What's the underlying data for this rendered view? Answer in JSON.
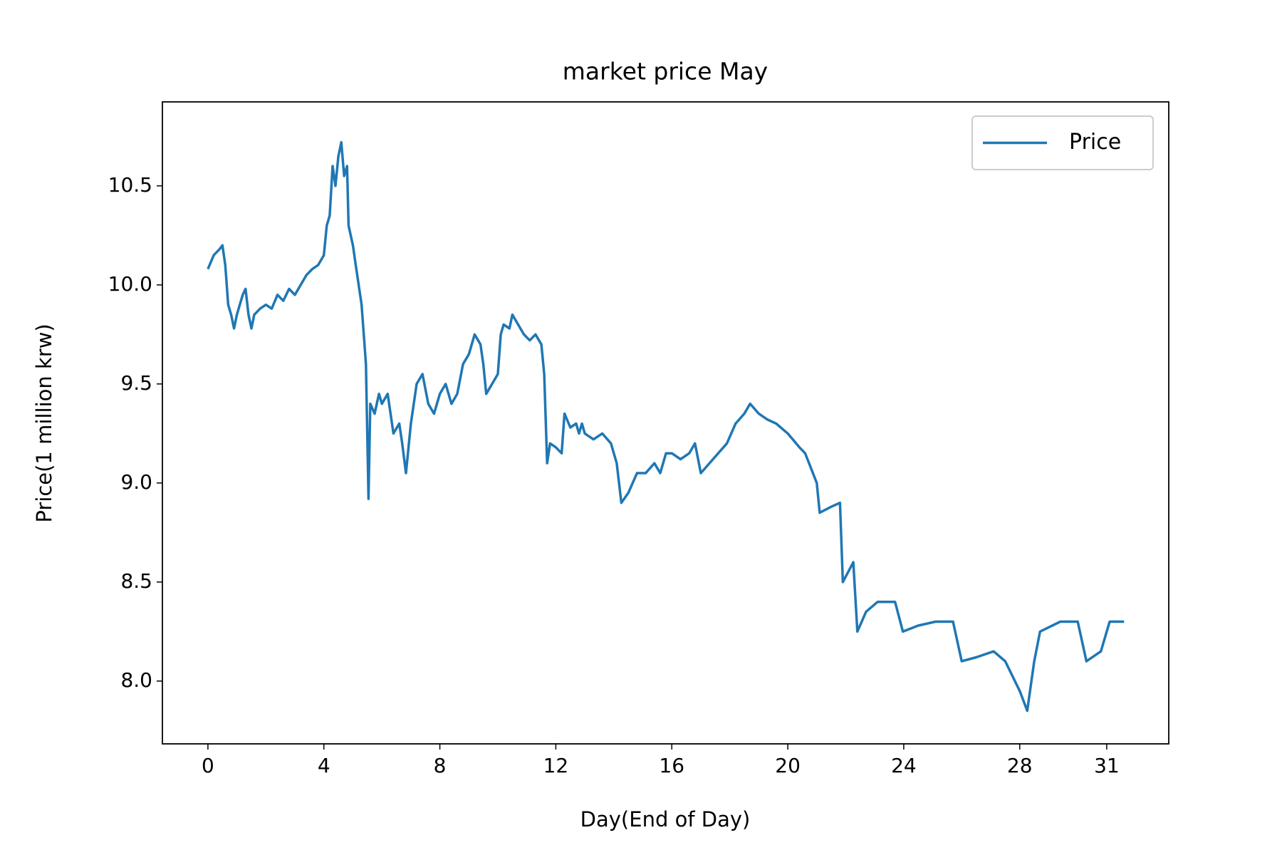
{
  "chart_data": {
    "type": "line",
    "title": "market price May",
    "xlabel": "Day(End of Day)",
    "ylabel": "Price(1 million krw)",
    "x": [
      0,
      0.2,
      0.4,
      0.5,
      0.6,
      0.7,
      0.8,
      0.9,
      1.0,
      1.2,
      1.3,
      1.4,
      1.5,
      1.6,
      1.8,
      2.0,
      2.2,
      2.4,
      2.6,
      2.8,
      3.0,
      3.2,
      3.4,
      3.6,
      3.8,
      4.0,
      4.1,
      4.2,
      4.3,
      4.4,
      4.5,
      4.6,
      4.7,
      4.8,
      4.85,
      5.0,
      5.1,
      5.3,
      5.45,
      5.54,
      5.6,
      5.75,
      5.9,
      6.0,
      6.2,
      6.4,
      6.6,
      6.7,
      6.83,
      7.0,
      7.2,
      7.4,
      7.6,
      7.8,
      8.0,
      8.2,
      8.4,
      8.6,
      8.8,
      9.0,
      9.2,
      9.4,
      9.5,
      9.6,
      9.8,
      10.0,
      10.1,
      10.2,
      10.4,
      10.5,
      10.7,
      10.9,
      11.1,
      11.3,
      11.5,
      11.6,
      11.7,
      11.8,
      12.0,
      12.2,
      12.3,
      12.5,
      12.7,
      12.8,
      12.9,
      13.0,
      13.3,
      13.6,
      13.9,
      14.1,
      14.26,
      14.5,
      14.8,
      15.1,
      15.4,
      15.6,
      15.8,
      16.0,
      16.3,
      16.6,
      16.8,
      17.0,
      17.3,
      17.6,
      17.9,
      18.2,
      18.5,
      18.7,
      19.0,
      19.3,
      19.6,
      20.0,
      20.4,
      20.6,
      21.0,
      21.1,
      21.5,
      21.8,
      21.9,
      22.26,
      22.4,
      22.7,
      23.1,
      23.7,
      23.97,
      24.5,
      25.1,
      25.7,
      26.0,
      26.5,
      27.1,
      27.5,
      28.0,
      28.26,
      28.5,
      28.7,
      29.4,
      30.0,
      30.3,
      30.8,
      31.1,
      31.6
    ],
    "series": [
      {
        "name": "Price",
        "color": "#1f77b4",
        "values": [
          10.08,
          10.15,
          10.18,
          10.2,
          10.1,
          9.9,
          9.85,
          9.78,
          9.85,
          9.95,
          9.98,
          9.85,
          9.78,
          9.85,
          9.88,
          9.9,
          9.88,
          9.95,
          9.92,
          9.98,
          9.95,
          10.0,
          10.05,
          10.08,
          10.1,
          10.15,
          10.3,
          10.35,
          10.6,
          10.5,
          10.65,
          10.72,
          10.55,
          10.6,
          10.3,
          10.2,
          10.1,
          9.9,
          9.6,
          8.92,
          9.4,
          9.35,
          9.45,
          9.4,
          9.45,
          9.25,
          9.3,
          9.2,
          9.05,
          9.3,
          9.5,
          9.55,
          9.4,
          9.35,
          9.45,
          9.5,
          9.4,
          9.45,
          9.6,
          9.65,
          9.75,
          9.7,
          9.6,
          9.45,
          9.5,
          9.55,
          9.75,
          9.8,
          9.78,
          9.85,
          9.8,
          9.75,
          9.72,
          9.75,
          9.7,
          9.55,
          9.1,
          9.2,
          9.18,
          9.15,
          9.35,
          9.28,
          9.3,
          9.25,
          9.3,
          9.25,
          9.22,
          9.25,
          9.2,
          9.1,
          8.9,
          8.95,
          9.05,
          9.05,
          9.1,
          9.05,
          9.15,
          9.15,
          9.12,
          9.15,
          9.2,
          9.05,
          9.1,
          9.15,
          9.2,
          9.3,
          9.35,
          9.4,
          9.35,
          9.32,
          9.3,
          9.25,
          9.18,
          9.15,
          9.0,
          8.85,
          8.88,
          8.9,
          8.5,
          8.6,
          8.25,
          8.35,
          8.4,
          8.4,
          8.25,
          8.28,
          8.3,
          8.3,
          8.1,
          8.12,
          8.15,
          8.1,
          7.95,
          7.85,
          8.1,
          8.25,
          8.3,
          8.3,
          8.1,
          8.15,
          8.3,
          8.3
        ]
      }
    ],
    "xlim": [
      -1.57,
      33.14
    ],
    "xticks": [
      0,
      4,
      8,
      12,
      16,
      20,
      24,
      28,
      31
    ],
    "ylim": [
      7.683,
      10.924
    ],
    "yticks": [
      {
        "value": 8,
        "label": "8.0"
      },
      8.5,
      {
        "value": 9,
        "label": "9.0"
      },
      9.5,
      {
        "value": 10,
        "label": "10.0"
      },
      10.5
    ],
    "grid": false,
    "legend": "upper right"
  }
}
